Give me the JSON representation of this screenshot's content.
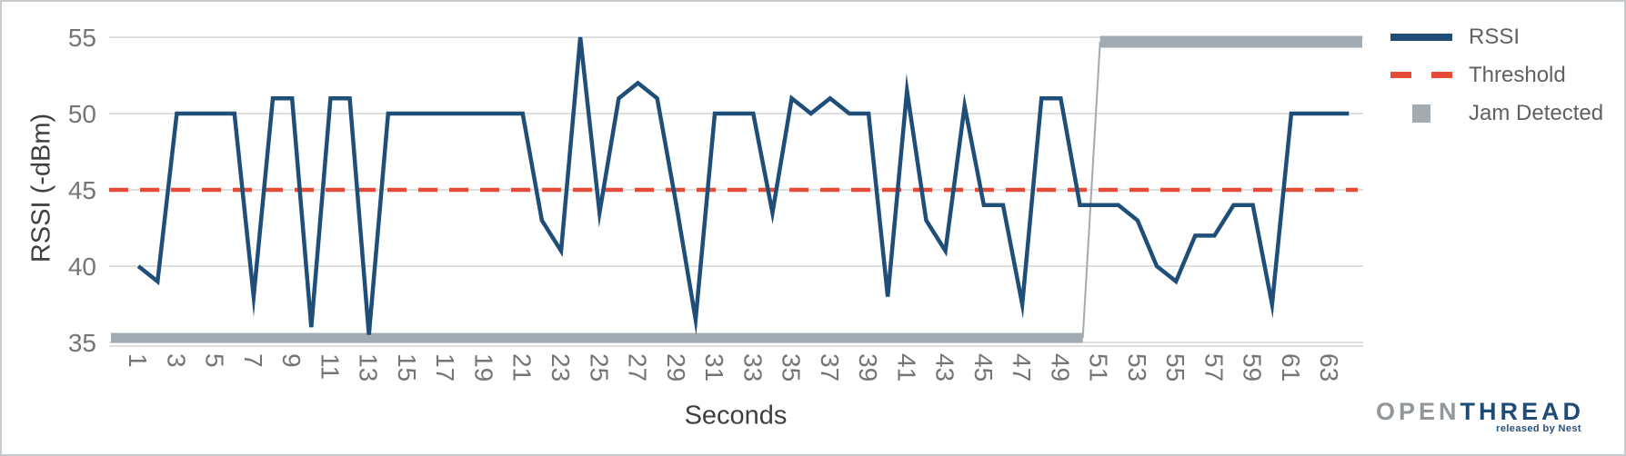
{
  "chart_data": {
    "type": "line",
    "title": "",
    "xlabel": "Seconds",
    "ylabel": "RSSI (-dBm)",
    "ylim": [
      35,
      55
    ],
    "yticks": [
      55,
      50,
      45,
      40,
      35
    ],
    "xticks": [
      1,
      3,
      5,
      7,
      9,
      11,
      13,
      15,
      17,
      19,
      21,
      23,
      25,
      27,
      29,
      31,
      33,
      35,
      37,
      39,
      41,
      43,
      45,
      47,
      49,
      51,
      53,
      55,
      57,
      59,
      61,
      63
    ],
    "grid": "horizontal",
    "legend_position": "right",
    "x": [
      1,
      2,
      3,
      4,
      5,
      6,
      7,
      8,
      9,
      10,
      11,
      12,
      13,
      14,
      15,
      16,
      17,
      18,
      19,
      20,
      21,
      22,
      23,
      24,
      25,
      26,
      27,
      28,
      29,
      30,
      31,
      32,
      33,
      34,
      35,
      36,
      37,
      38,
      39,
      40,
      41,
      42,
      43,
      44,
      45,
      46,
      47,
      48,
      49,
      50,
      51,
      52,
      53,
      54,
      55,
      56,
      57,
      58,
      59,
      60,
      61,
      62,
      63,
      64
    ],
    "series": [
      {
        "name": "RSSI",
        "type": "line",
        "color": "#1F4E79",
        "values": [
          40,
          39,
          50,
          50,
          50,
          50,
          38,
          51,
          51,
          36,
          51,
          51,
          35.5,
          50,
          50,
          50,
          50,
          50,
          50,
          50,
          50,
          43,
          41,
          55,
          43.5,
          51,
          52,
          51,
          44,
          36.5,
          50,
          50,
          50,
          43.5,
          51,
          50,
          51,
          50,
          50,
          38,
          51.5,
          43,
          41,
          50.5,
          44,
          44,
          37.5,
          51,
          51,
          44,
          44,
          44,
          43,
          40,
          39,
          42,
          42,
          44,
          44,
          37.5,
          50,
          50,
          50,
          50
        ]
      },
      {
        "name": "Threshold",
        "type": "line",
        "style": "dashed",
        "color": "#E64B38",
        "value": 45
      },
      {
        "name": "Jam Detected",
        "type": "step",
        "color": "#A2ABB1",
        "low_value": 35.3,
        "high_value": 54.7,
        "low_from_x": 1,
        "high_from_x": 51
      }
    ]
  },
  "axis": {
    "xlabel": "Seconds",
    "ylabel": "RSSI (-dBm)"
  },
  "legend": {
    "items": [
      {
        "label": "RSSI",
        "swatch": "solid-line"
      },
      {
        "label": "Threshold",
        "swatch": "dashed-line"
      },
      {
        "label": "Jam Detected",
        "swatch": "square"
      }
    ]
  },
  "logo": {
    "open": "OPEN",
    "thread": "THREAD",
    "tagline": "released by Nest"
  },
  "colors": {
    "rssi": "#1F4E79",
    "threshold": "#E64B38",
    "jam": "#A2ABB1",
    "grid": "#CCCCCC",
    "tick_text": "#757575",
    "axis_title_text": "#3C4043",
    "legend_text": "#616161",
    "border": "#C7CACC"
  }
}
